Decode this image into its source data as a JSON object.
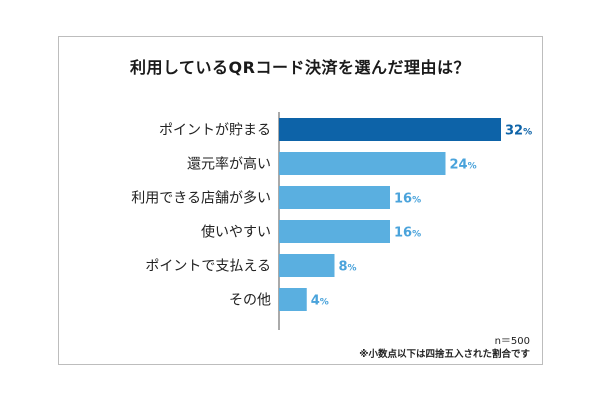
{
  "chart_data": {
    "type": "bar",
    "orientation": "horizontal",
    "title": "利用しているQRコード決済を選んだ理由は？",
    "categories": [
      "ポイントが貯まる",
      "還元率が高い",
      "利用できる店舗が多い",
      "使いやすい",
      "ポイントで支払える",
      "その他"
    ],
    "values": [
      32,
      24,
      16,
      16,
      8,
      4
    ],
    "value_unit": "%",
    "xlim": [
      0,
      32
    ],
    "grid": false,
    "highlight_color": "#0d63a8",
    "bar_color": "#5aafe0",
    "label_highlight_color": "#0d63a8",
    "label_color": "#4aa3db"
  },
  "notes": {
    "sample": "n＝500",
    "rounding": "※小数点以下は四捨五入された割合です"
  }
}
